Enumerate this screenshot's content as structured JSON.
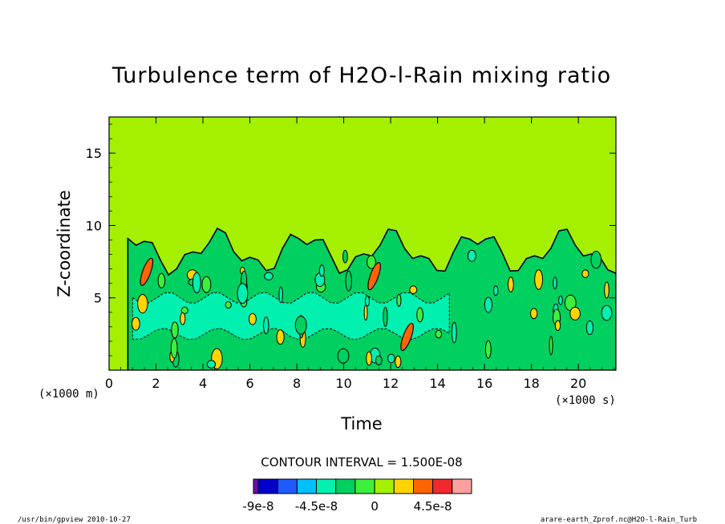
{
  "chart_data": {
    "type": "contour",
    "title": "Turbulence term of H2O-l-Rain mixing ratio",
    "xlabel": "Time",
    "ylabel": "Z-coordinate",
    "x_unit": "(×1000 s)",
    "y_unit": "(×1000 m)",
    "xlim": [
      0,
      21.6
    ],
    "ylim": [
      0,
      17.5
    ],
    "x_ticks": [
      0,
      2,
      4,
      6,
      8,
      10,
      12,
      14,
      16,
      18,
      20
    ],
    "y_ticks": [
      5,
      10,
      15
    ],
    "contour_interval_label": "CONTOUR INTERVAL = 1.500E-08",
    "colorbar": {
      "levels": [
        -9e-08,
        -7.5e-08,
        -6e-08,
        -4.5e-08,
        -3e-08,
        -1.5e-08,
        0,
        1.5e-08,
        3e-08,
        4.5e-08,
        6e-08
      ],
      "colors": [
        "#6a0dad",
        "#0000cd",
        "#1e5aff",
        "#00bfff",
        "#00f0b0",
        "#00d060",
        "#3cf03c",
        "#a4f000",
        "#ffd400",
        "#ff6400",
        "#f0282d",
        "#ffa0a0"
      ],
      "tick_labels": [
        "-9e-8",
        "-4.5e-8",
        "0",
        "4.5e-8"
      ],
      "tick_values": [
        -9e-08,
        -4.5e-08,
        0,
        4.5e-08
      ]
    },
    "background_color": "#a4f000",
    "features": [
      {
        "kind": "active-layer",
        "x_range": [
          0.8,
          21.6
        ],
        "z_range": [
          0,
          9.5
        ],
        "fill": "#00d060"
      },
      {
        "kind": "core-negative",
        "x_range": [
          1.0,
          14.5
        ],
        "z_range": [
          2.5,
          5.0
        ],
        "fill": "#00f0b0"
      },
      {
        "kind": "positive-max",
        "x": 1.6,
        "z": 6.8,
        "fill": "#ff6400"
      },
      {
        "kind": "positive-max",
        "x": 12.7,
        "z": 2.3,
        "fill": "#ff6400"
      },
      {
        "kind": "positive-max",
        "x": 11.3,
        "z": 6.5,
        "fill": "#ff6400"
      }
    ]
  },
  "footer": {
    "left": "/usr/bin/gpview  2010-10-27",
    "right": "arare-earth_Zprof.nc@H2O-l-Rain_Turb"
  }
}
